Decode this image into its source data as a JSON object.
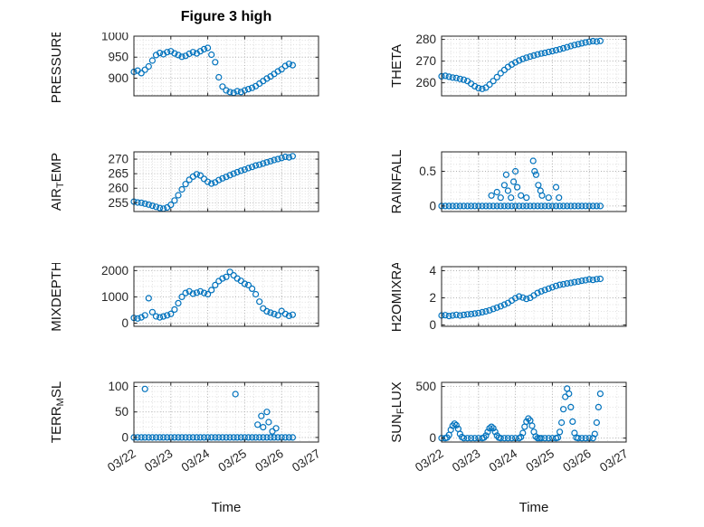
{
  "figure": {
    "title": "Figure 3 high"
  },
  "style": {
    "marker_color": "#0072BD",
    "axis_color": "#202020",
    "major_grid_color": "#b0b0b0",
    "minor_grid_color": "#d8d8d8",
    "text_color": "#262626"
  },
  "x_axis": {
    "label": "Time",
    "lim": [
      0,
      5
    ],
    "major_ticks": [
      0,
      1,
      2,
      3,
      4,
      5
    ],
    "tick_labels": [
      "03/22",
      "03/23",
      "03/24",
      "03/25",
      "03/26",
      "03/27"
    ],
    "minor_step": 0.25
  },
  "chart_data": [
    {
      "type": "scatter",
      "ylabel": "PRESSURE",
      "ylabel_parts": [
        {
          "t": "PRESSURE"
        }
      ],
      "ylabel_x": 32,
      "ylim": [
        858,
        1000
      ],
      "yticks": [
        900,
        950,
        1000
      ],
      "ytick_labels": [
        "900",
        "950",
        "1000"
      ],
      "yminor_step": 10,
      "x": [
        0,
        0.1,
        0.2,
        0.3,
        0.4,
        0.5,
        0.6,
        0.7,
        0.8,
        0.9,
        1,
        1.1,
        1.2,
        1.3,
        1.4,
        1.5,
        1.6,
        1.7,
        1.8,
        1.9,
        2,
        2.1,
        2.2,
        2.3,
        2.4,
        2.5,
        2.6,
        2.7,
        2.8,
        2.9,
        3,
        3.1,
        3.2,
        3.3,
        3.4,
        3.5,
        3.6,
        3.7,
        3.8,
        3.9,
        4,
        4.1,
        4.2,
        4.3
      ],
      "y": [
        915,
        918,
        912,
        920,
        928,
        942,
        955,
        960,
        957,
        962,
        964,
        959,
        955,
        951,
        953,
        958,
        962,
        959,
        964,
        969,
        972,
        956,
        938,
        902,
        880,
        871,
        867,
        865,
        869,
        867,
        871,
        874,
        877,
        881,
        887,
        893,
        899,
        904,
        910,
        916,
        921,
        929,
        934,
        931
      ]
    },
    {
      "type": "scatter",
      "ylabel": "THETA",
      "ylabel_parts": [
        {
          "t": "THETA"
        }
      ],
      "ylabel_x": 68,
      "ylim": [
        254,
        281.5
      ],
      "yticks": [
        260,
        270,
        280
      ],
      "ytick_labels": [
        "260",
        "270",
        "280"
      ],
      "yminor_step": 2,
      "x": [
        0,
        0.1,
        0.2,
        0.3,
        0.4,
        0.5,
        0.6,
        0.7,
        0.8,
        0.9,
        1,
        1.1,
        1.2,
        1.3,
        1.4,
        1.5,
        1.6,
        1.7,
        1.8,
        1.9,
        2,
        2.1,
        2.2,
        2.3,
        2.4,
        2.5,
        2.6,
        2.7,
        2.8,
        2.9,
        3,
        3.1,
        3.2,
        3.3,
        3.4,
        3.5,
        3.6,
        3.7,
        3.8,
        3.9,
        4,
        4.1,
        4.2,
        4.3
      ],
      "y": [
        263,
        263.2,
        262.8,
        262.4,
        262.2,
        261.8,
        261.4,
        260.8,
        259.6,
        258.4,
        257.6,
        257.2,
        257.8,
        259.2,
        260.8,
        262.6,
        264.4,
        265.9,
        267.3,
        268.4,
        269.4,
        270.3,
        271,
        271.6,
        272.1,
        272.6,
        273.1,
        273.5,
        273.8,
        274.2,
        274.6,
        275,
        275.4,
        275.9,
        276.4,
        276.9,
        277.4,
        277.8,
        278.2,
        278.6,
        278.9,
        279.2,
        279,
        279.3
      ]
    },
    {
      "type": "scatter",
      "ylabel": "AIR_TEMP",
      "ylabel_parts": [
        {
          "t": "AIR"
        },
        {
          "t": "T",
          "sub": true
        },
        {
          "t": "EMP"
        }
      ],
      "ylabel_x": 32,
      "ylim": [
        252,
        272.5
      ],
      "yticks": [
        255,
        260,
        265,
        270
      ],
      "ytick_labels": [
        "255",
        "260",
        "265",
        "270"
      ],
      "yminor_step": 1,
      "x": [
        0,
        0.1,
        0.2,
        0.3,
        0.4,
        0.5,
        0.6,
        0.7,
        0.8,
        0.9,
        1,
        1.1,
        1.2,
        1.3,
        1.4,
        1.5,
        1.6,
        1.7,
        1.8,
        1.9,
        2,
        2.1,
        2.2,
        2.3,
        2.4,
        2.5,
        2.6,
        2.7,
        2.8,
        2.9,
        3,
        3.1,
        3.2,
        3.3,
        3.4,
        3.5,
        3.6,
        3.7,
        3.8,
        3.9,
        4,
        4.1,
        4.2,
        4.3
      ],
      "y": [
        255.4,
        255.1,
        255,
        254.7,
        254.4,
        254,
        253.6,
        253.2,
        253,
        253.4,
        254.3,
        255.8,
        257.6,
        259.6,
        261.4,
        262.9,
        264,
        264.8,
        264.4,
        263.2,
        262.2,
        261.6,
        262,
        262.8,
        263.4,
        263.9,
        264.5,
        265,
        265.5,
        266,
        266.4,
        266.9,
        267.3,
        267.8,
        268.1,
        268.5,
        268.9,
        269.3,
        269.7,
        270,
        270.4,
        270.8,
        270.6,
        271
      ]
    },
    {
      "type": "scatter",
      "ylabel": "RAINFALL",
      "ylabel_parts": [
        {
          "t": "RAINFALL"
        }
      ],
      "ylabel_x": 68,
      "ylim": [
        -0.08,
        0.78
      ],
      "yticks": [
        0,
        0.5
      ],
      "ytick_labels": [
        "0",
        "0.5"
      ],
      "yminor_step": 0.1,
      "x": [
        0,
        0.1,
        0.2,
        0.3,
        0.4,
        0.5,
        0.6,
        0.7,
        0.8,
        0.9,
        1,
        1.1,
        1.2,
        1.3,
        1.4,
        1.5,
        1.6,
        1.7,
        1.8,
        1.9,
        2,
        2.1,
        2.2,
        2.3,
        2.4,
        2.5,
        2.6,
        2.7,
        2.8,
        2.9,
        3,
        3.1,
        3.2,
        3.3,
        3.4,
        3.5,
        3.6,
        3.7,
        3.8,
        3.9,
        4,
        4.1,
        4.2,
        4.3,
        1.35,
        1.5,
        1.6,
        1.7,
        1.75,
        1.8,
        1.88,
        1.95,
        2,
        2.05,
        2.15,
        2.3,
        2.48,
        2.52,
        2.56,
        2.62,
        2.68,
        2.72,
        2.9,
        3.1,
        3.18
      ],
      "y": [
        0,
        0,
        0,
        0,
        0,
        0,
        0,
        0,
        0,
        0,
        0,
        0,
        0,
        0,
        0,
        0,
        0,
        0,
        0,
        0,
        0,
        0,
        0,
        0,
        0,
        0,
        0,
        0,
        0,
        0,
        0,
        0,
        0,
        0,
        0,
        0,
        0,
        0,
        0,
        0,
        0,
        0,
        0,
        0,
        0.15,
        0.2,
        0.12,
        0.3,
        0.45,
        0.22,
        0.12,
        0.35,
        0.5,
        0.27,
        0.15,
        0.12,
        0.65,
        0.5,
        0.45,
        0.3,
        0.22,
        0.15,
        0.12,
        0.27,
        0.12
      ]
    },
    {
      "type": "scatter",
      "ylabel": "MIXDEPTH",
      "ylabel_parts": [
        {
          "t": "MIXDEPTH"
        }
      ],
      "ylabel_x": 32,
      "ylim": [
        -120,
        2150
      ],
      "yticks": [
        0,
        1000,
        2000
      ],
      "ytick_labels": [
        "0",
        "1000",
        "2000"
      ],
      "yminor_step": 200,
      "x": [
        0,
        0.1,
        0.2,
        0.3,
        0.4,
        0.5,
        0.6,
        0.7,
        0.8,
        0.9,
        1,
        1.1,
        1.2,
        1.3,
        1.4,
        1.5,
        1.6,
        1.7,
        1.8,
        1.9,
        2,
        2.1,
        2.2,
        2.3,
        2.4,
        2.5,
        2.6,
        2.7,
        2.8,
        2.9,
        3,
        3.1,
        3.2,
        3.3,
        3.4,
        3.5,
        3.6,
        3.7,
        3.8,
        3.9,
        4,
        4.1,
        4.2,
        4.3
      ],
      "y": [
        200,
        180,
        220,
        300,
        950,
        420,
        260,
        220,
        255,
        300,
        350,
        520,
        760,
        1000,
        1150,
        1210,
        1120,
        1160,
        1210,
        1150,
        1100,
        1260,
        1450,
        1600,
        1700,
        1760,
        1950,
        1820,
        1700,
        1610,
        1500,
        1450,
        1310,
        1100,
        820,
        560,
        450,
        400,
        350,
        300,
        460,
        350,
        280,
        320
      ]
    },
    {
      "type": "scatter",
      "ylabel": "H2OMIXRA",
      "ylabel_parts": [
        {
          "t": "H2OMIXRA"
        }
      ],
      "ylabel_x": 68,
      "ylim": [
        -0.1,
        4.3
      ],
      "yticks": [
        0,
        2,
        4
      ],
      "ytick_labels": [
        "0",
        "2",
        "4"
      ],
      "yminor_step": 0.5,
      "x": [
        0,
        0.1,
        0.2,
        0.3,
        0.4,
        0.5,
        0.6,
        0.7,
        0.8,
        0.9,
        1,
        1.1,
        1.2,
        1.3,
        1.4,
        1.5,
        1.6,
        1.7,
        1.8,
        1.9,
        2,
        2.1,
        2.2,
        2.3,
        2.4,
        2.5,
        2.6,
        2.7,
        2.8,
        2.9,
        3,
        3.1,
        3.2,
        3.3,
        3.4,
        3.5,
        3.6,
        3.7,
        3.8,
        3.9,
        4,
        4.1,
        4.2,
        4.3
      ],
      "y": [
        0.7,
        0.72,
        0.66,
        0.7,
        0.75,
        0.7,
        0.74,
        0.78,
        0.8,
        0.84,
        0.88,
        0.94,
        1,
        1.08,
        1.18,
        1.28,
        1.38,
        1.5,
        1.62,
        1.8,
        1.98,
        2.1,
        2.02,
        1.92,
        2,
        2.18,
        2.36,
        2.48,
        2.58,
        2.68,
        2.78,
        2.88,
        2.96,
        3,
        3.06,
        3.1,
        3.16,
        3.2,
        3.26,
        3.3,
        3.36,
        3.32,
        3.38,
        3.4
      ]
    },
    {
      "type": "scatter",
      "ylabel": "TERR_MSL",
      "ylabel_parts": [
        {
          "t": "TERR"
        },
        {
          "t": "M",
          "sub": true
        },
        {
          "t": "SL"
        }
      ],
      "ylabel_x": 32,
      "ylim": [
        -9,
        108
      ],
      "yticks": [
        0,
        50,
        100
      ],
      "ytick_labels": [
        "0",
        "50",
        "100"
      ],
      "yminor_step": 10,
      "x": [
        0,
        0.1,
        0.2,
        0.3,
        0.4,
        0.5,
        0.6,
        0.7,
        0.8,
        0.9,
        1,
        1.1,
        1.2,
        1.3,
        1.4,
        1.5,
        1.6,
        1.7,
        1.8,
        1.9,
        2,
        2.1,
        2.2,
        2.3,
        2.4,
        2.5,
        2.6,
        2.7,
        2.8,
        2.9,
        3,
        3.1,
        3.2,
        3.3,
        3.4,
        3.5,
        3.6,
        3.7,
        3.8,
        3.9,
        4,
        4.1,
        4.2,
        4.3,
        0.3,
        2.75,
        3.35,
        3.45,
        3.5,
        3.6,
        3.65,
        3.75,
        3.85
      ],
      "y": [
        0,
        0,
        0,
        0,
        0,
        0,
        0,
        0,
        0,
        0,
        0,
        0,
        0,
        0,
        0,
        0,
        0,
        0,
        0,
        0,
        0,
        0,
        0,
        0,
        0,
        0,
        0,
        0,
        0,
        0,
        0,
        0,
        0,
        0,
        0,
        0,
        0,
        0,
        0,
        0,
        0,
        0,
        0,
        0,
        95,
        85,
        25,
        42,
        20,
        50,
        30,
        12,
        18
      ]
    },
    {
      "type": "scatter",
      "ylabel": "SUN_FLUX",
      "ylabel_parts": [
        {
          "t": "SUN"
        },
        {
          "t": "F",
          "sub": true
        },
        {
          "t": "LUX"
        }
      ],
      "ylabel_x": 68,
      "ylim": [
        -38,
        540
      ],
      "yticks": [
        0,
        500
      ],
      "ytick_labels": [
        "0",
        "500"
      ],
      "yminor_step": 100,
      "x": [
        0,
        0.1,
        0.15,
        0.2,
        0.25,
        0.3,
        0.35,
        0.4,
        0.45,
        0.5,
        0.55,
        0.6,
        0.7,
        0.8,
        0.9,
        1,
        1.1,
        1.15,
        1.2,
        1.25,
        1.3,
        1.35,
        1.4,
        1.45,
        1.5,
        1.55,
        1.6,
        1.7,
        1.8,
        1.9,
        2,
        2.1,
        2.15,
        2.2,
        2.25,
        2.3,
        2.35,
        2.4,
        2.45,
        2.5,
        2.55,
        2.6,
        2.65,
        2.7,
        2.8,
        2.9,
        3,
        3.1,
        3.15,
        3.2,
        3.25,
        3.3,
        3.35,
        3.4,
        3.45,
        3.5,
        3.55,
        3.6,
        3.65,
        3.7,
        3.8,
        3.9,
        4,
        4.1,
        4.15,
        4.2,
        4.25,
        4.3
      ],
      "y": [
        0,
        0,
        5,
        30,
        80,
        120,
        140,
        125,
        90,
        40,
        10,
        0,
        0,
        0,
        0,
        0,
        0,
        5,
        25,
        60,
        95,
        110,
        95,
        60,
        25,
        5,
        0,
        0,
        0,
        0,
        0,
        0,
        10,
        50,
        110,
        160,
        190,
        170,
        120,
        60,
        15,
        0,
        0,
        0,
        0,
        0,
        0,
        0,
        5,
        60,
        150,
        280,
        400,
        480,
        430,
        300,
        160,
        50,
        5,
        0,
        0,
        0,
        0,
        0,
        40,
        150,
        300,
        430
      ]
    }
  ]
}
